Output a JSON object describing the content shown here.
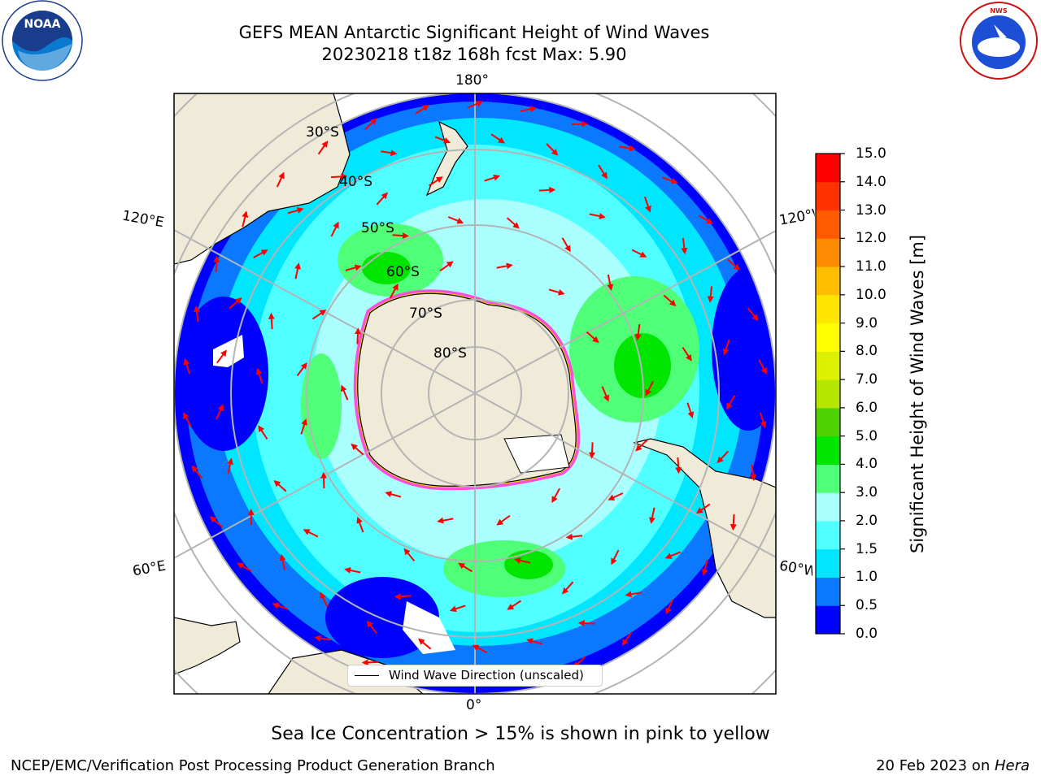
{
  "header": {
    "title_line1": "GEFS MEAN Antarctic Significant Height of Wind Waves",
    "title_line2": "20230218 t18z 168h fcst   Max: 5.90",
    "noaa_logo_text": "NOAA",
    "nws_logo_text": "NATIONAL WEATHER SERVICE"
  },
  "map": {
    "longitude_labels": {
      "top": "180°",
      "bottom": "0°",
      "upper_left": "120°E",
      "lower_left": "60°E",
      "upper_right": "120°W",
      "lower_right": "60°W"
    },
    "latitude_labels": [
      "30°S",
      "40°S",
      "50°S",
      "60°S",
      "70°S",
      "80°S"
    ],
    "legend_text": "Wind Wave Direction (unscaled)",
    "colors": {
      "land": "#efebd8",
      "ice_edge_pink": "#ff4fd8",
      "ice_edge_yellow": "#ffd400",
      "arrow": "#ff0000",
      "grid": "#b4b4b4"
    }
  },
  "colorbar": {
    "label": "Significant Height of Wind Waves [m]",
    "ticks": [
      "0.0",
      "0.5",
      "1.0",
      "1.5",
      "2.0",
      "3.0",
      "4.0",
      "5.0",
      "6.0",
      "7.0",
      "8.0",
      "9.0",
      "10.0",
      "11.0",
      "12.0",
      "13.0",
      "14.0",
      "15.0"
    ],
    "colors": [
      "#0000ff",
      "#0a78ff",
      "#00e6ff",
      "#50ffff",
      "#aaffff",
      "#50ff78",
      "#00e600",
      "#50d200",
      "#b4e600",
      "#dcf000",
      "#ffff00",
      "#ffe600",
      "#ffbe00",
      "#ff8c00",
      "#ff5a00",
      "#ff3200",
      "#ff0000"
    ]
  },
  "footer": {
    "note": "Sea Ice Concentration > 15% is shown in pink to yellow",
    "left": "NCEP/EMC/Verification Post Processing Product Generation Branch",
    "right_prefix": "20 Feb 2023 on ",
    "right_machine": "Hera"
  }
}
